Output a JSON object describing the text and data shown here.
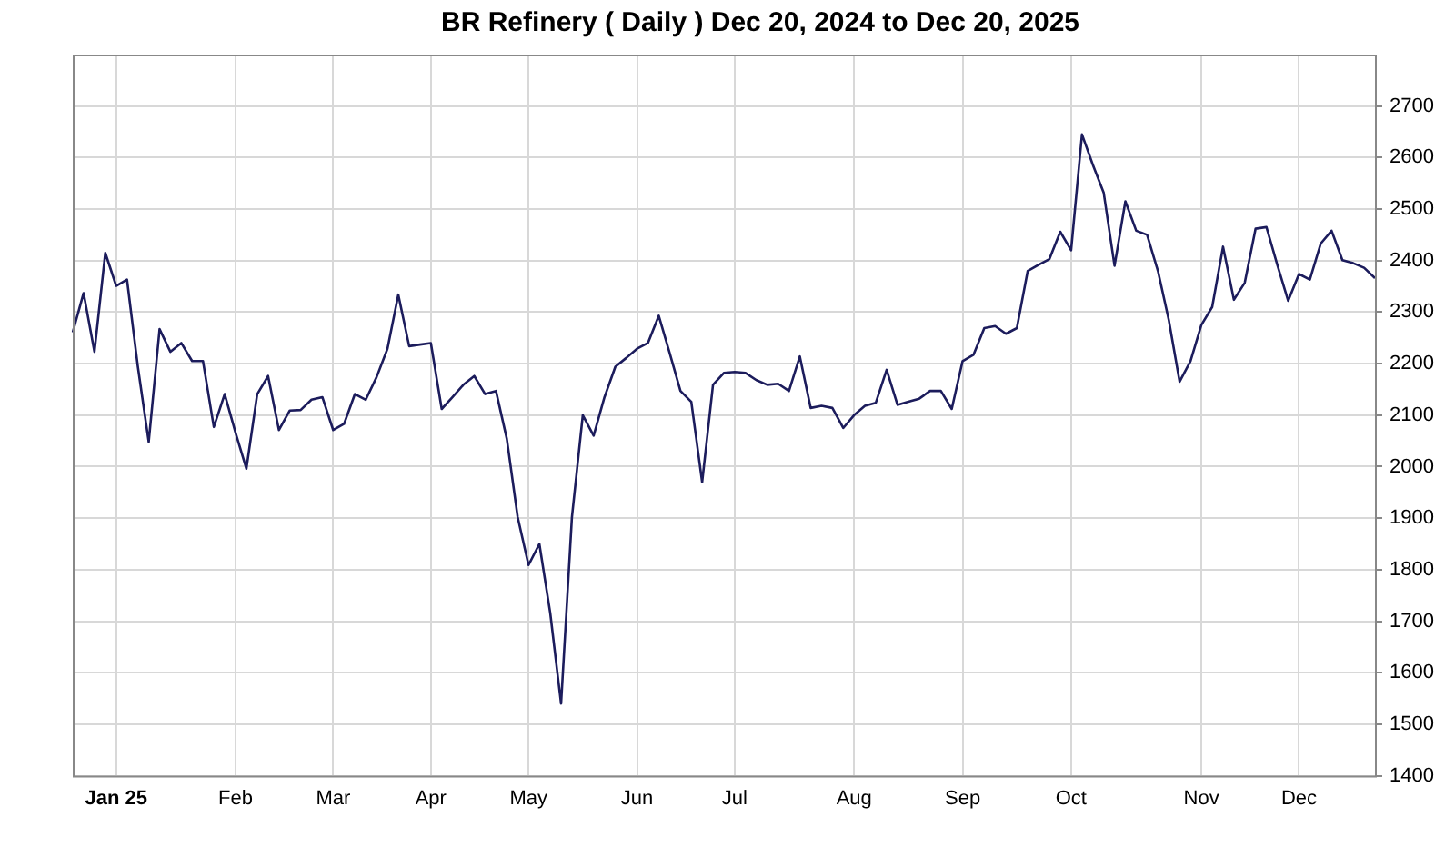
{
  "chart_data": {
    "type": "line",
    "title": "BR Refinery ( Daily ) Dec 20, 2024 to Dec 20, 2025",
    "categories": [
      null,
      null,
      null,
      null,
      "Jan 25",
      null,
      null,
      null,
      null,
      null,
      null,
      null,
      null,
      null,
      null,
      "Feb",
      null,
      null,
      null,
      null,
      null,
      null,
      null,
      null,
      "Mar",
      null,
      null,
      null,
      null,
      null,
      null,
      null,
      null,
      "Apr",
      null,
      null,
      null,
      null,
      null,
      null,
      null,
      null,
      "May",
      null,
      null,
      null,
      null,
      null,
      null,
      null,
      null,
      null,
      "Jun",
      null,
      null,
      null,
      null,
      null,
      null,
      null,
      null,
      "Jul",
      null,
      null,
      null,
      null,
      null,
      null,
      null,
      null,
      null,
      null,
      "Aug",
      null,
      null,
      null,
      null,
      null,
      null,
      null,
      null,
      null,
      "Sep",
      null,
      null,
      null,
      null,
      null,
      null,
      null,
      null,
      null,
      "Oct",
      null,
      null,
      null,
      null,
      null,
      null,
      null,
      null,
      null,
      null,
      null,
      "Nov",
      null,
      null,
      null,
      null,
      null,
      null,
      null,
      null,
      "Dec",
      null,
      null,
      null,
      null,
      null,
      null,
      null
    ],
    "series": [
      {
        "color": "#1c1c5c",
        "values": [
          2261,
          2337,
          2223,
          2415,
          2351,
          2363,
          2194,
          2048,
          2267,
          2223,
          2240,
          2205,
          2205,
          2077,
          2141,
          2066,
          1996,
          2141,
          2176,
          2071,
          2109,
          2110,
          2130,
          2135,
          2071,
          2083,
          2141,
          2130,
          2174,
          2229,
          2334,
          2234,
          2237,
          2240,
          2112,
          2135,
          2159,
          2176,
          2141,
          2147,
          2054,
          1902,
          1809,
          1850,
          1716,
          1540,
          1902,
          2100,
          2060,
          2135,
          2194,
          2211,
          2229,
          2240,
          2293,
          2221,
          2147,
          2126,
          1970,
          2159,
          2182,
          2184,
          2182,
          2168,
          2159,
          2161,
          2147,
          2214,
          2114,
          2118,
          2114,
          2075,
          2100,
          2118,
          2124,
          2188,
          2120,
          2126,
          2132,
          2147,
          2147,
          2112,
          2205,
          2217,
          2269,
          2273,
          2258,
          2269,
          2380,
          2392,
          2403,
          2456,
          2420,
          2645,
          2586,
          2532,
          2390,
          2515,
          2458,
          2450,
          2380,
          2285,
          2165,
          2205,
          2275,
          2310,
          2427,
          2324,
          2357,
          2462,
          2465,
          2392,
          2322,
          2374,
          2363,
          2433,
          2458,
          2401,
          2395,
          2386,
          2366
        ]
      }
    ],
    "ylim": [
      1400,
      2800
    ],
    "yticks": [
      1400,
      1500,
      1600,
      1700,
      1800,
      1900,
      2000,
      2100,
      2200,
      2300,
      2400,
      2500,
      2600,
      2700
    ],
    "grid": true,
    "legend": false,
    "marker": "none",
    "line_style": "solid"
  }
}
